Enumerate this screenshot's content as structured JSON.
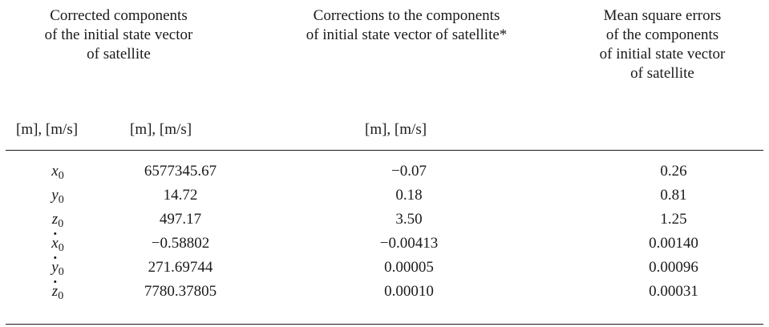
{
  "table": {
    "headers": {
      "col1": [
        "Corrected components",
        "of the initial state vector",
        "of satellite"
      ],
      "col2": [
        "Corrections to the components",
        "of initial state vector of satellite*"
      ],
      "col3": [
        "Mean square errors",
        "of the components",
        "of initial state vector",
        "of satellite"
      ]
    },
    "units": [
      "[m], [m/s]",
      "[m], [m/s]",
      "[m], [m/s]"
    ],
    "rows": [
      {
        "symbol": "x",
        "subscript": "0",
        "dotted": false,
        "value": "6577345.67",
        "correction": "−0.07",
        "mse": "0.26"
      },
      {
        "symbol": "y",
        "subscript": "0",
        "dotted": false,
        "value": "14.72",
        "correction": "0.18",
        "mse": "0.81"
      },
      {
        "symbol": "z",
        "subscript": "0",
        "dotted": false,
        "value": "497.17",
        "correction": "3.50",
        "mse": "1.25"
      },
      {
        "symbol": "x",
        "subscript": "0",
        "dotted": true,
        "value": "−0.58802",
        "correction": "−0.00413",
        "mse": "0.00140"
      },
      {
        "symbol": "y",
        "subscript": "0",
        "dotted": true,
        "value": "271.69744",
        "correction": "0.00005",
        "mse": "0.00096"
      },
      {
        "symbol": "z",
        "subscript": "0",
        "dotted": true,
        "value": "7780.37805",
        "correction": "0.00010",
        "mse": "0.00031"
      }
    ]
  }
}
